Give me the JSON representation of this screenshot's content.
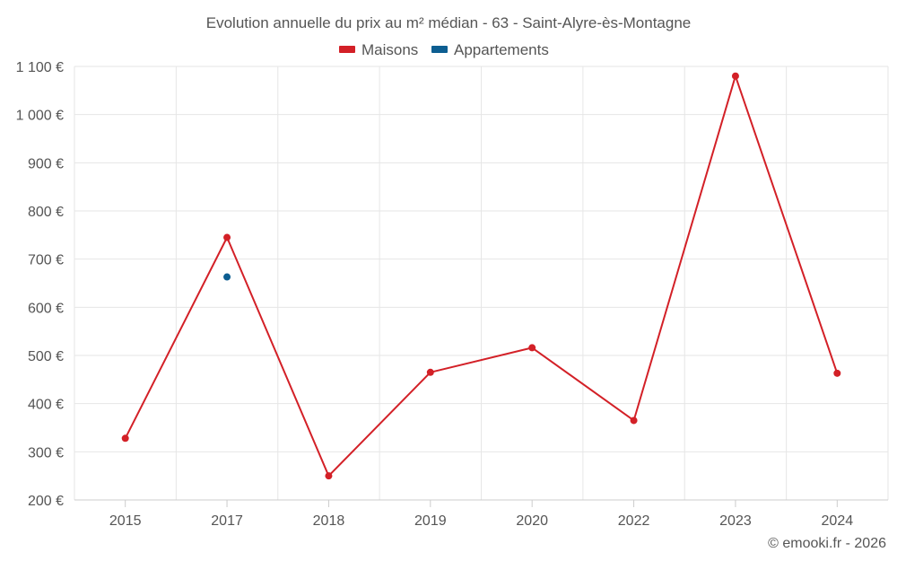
{
  "chart_data": {
    "type": "line",
    "title": "Evolution annuelle du prix au m² médian - 63 - Saint-Alyre-ès-Montagne",
    "categories": [
      "2015",
      "2017",
      "2018",
      "2019",
      "2020",
      "2022",
      "2023",
      "2024"
    ],
    "series": [
      {
        "name": "Maisons",
        "color": "#d32027",
        "values": [
          328,
          745,
          250,
          465,
          516,
          365,
          1080,
          463
        ]
      },
      {
        "name": "Appartements",
        "color": "#0d5e91",
        "values": [
          null,
          663,
          null,
          null,
          null,
          null,
          null,
          null
        ]
      }
    ],
    "ylim": [
      200,
      1100
    ],
    "yticks": [
      200,
      300,
      400,
      500,
      600,
      700,
      800,
      900,
      1000,
      1100
    ],
    "ytick_labels": [
      "200 €",
      "300 €",
      "400 €",
      "500 €",
      "600 €",
      "700 €",
      "800 €",
      "900 €",
      "1 000 €",
      "1 100 €"
    ],
    "xlabel": "",
    "ylabel": "",
    "legend": "top-center",
    "grid": true
  },
  "credit": "© emooki.fr - 2026"
}
